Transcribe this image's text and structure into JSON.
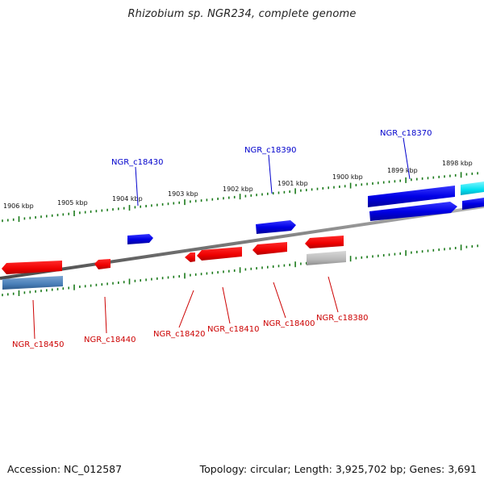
{
  "title": "Rhizobium sp. NGR234, complete genome",
  "accession": "Accession: NC_012587",
  "topology": "Topology: circular; Length: 3,925,702 bp; Genes: 3,691",
  "colors": {
    "backbone": "#808080",
    "tick": "#1a7a1a",
    "forward_gene": "#0000e0",
    "reverse_gene": "#ff0000",
    "forward_label": "#0000cc",
    "reverse_label": "#cc0000"
  },
  "scale": {
    "ticks": [
      "1906 kbp",
      "1905 kbp",
      "1904 kbp",
      "1903 kbp",
      "1902 kbp",
      "1901 kbp",
      "1900 kbp",
      "1899 kbp",
      "1898 kbp"
    ]
  },
  "genes": [
    {
      "id": "NGR_c18450",
      "strand": "reverse",
      "labeled": true
    },
    {
      "id": "NGR_c18440",
      "strand": "reverse",
      "labeled": true
    },
    {
      "id": "NGR_c18430",
      "strand": "forward",
      "labeled": true
    },
    {
      "id": "NGR_c18420",
      "strand": "reverse",
      "labeled": true
    },
    {
      "id": "NGR_c18410",
      "strand": "reverse",
      "labeled": true
    },
    {
      "id": "NGR_c18400",
      "strand": "reverse",
      "labeled": true
    },
    {
      "id": "NGR_c18390",
      "strand": "forward",
      "labeled": true
    },
    {
      "id": "NGR_c18380",
      "strand": "reverse",
      "labeled": true
    },
    {
      "id": "NGR_c18370",
      "strand": "forward",
      "labeled": true
    }
  ]
}
